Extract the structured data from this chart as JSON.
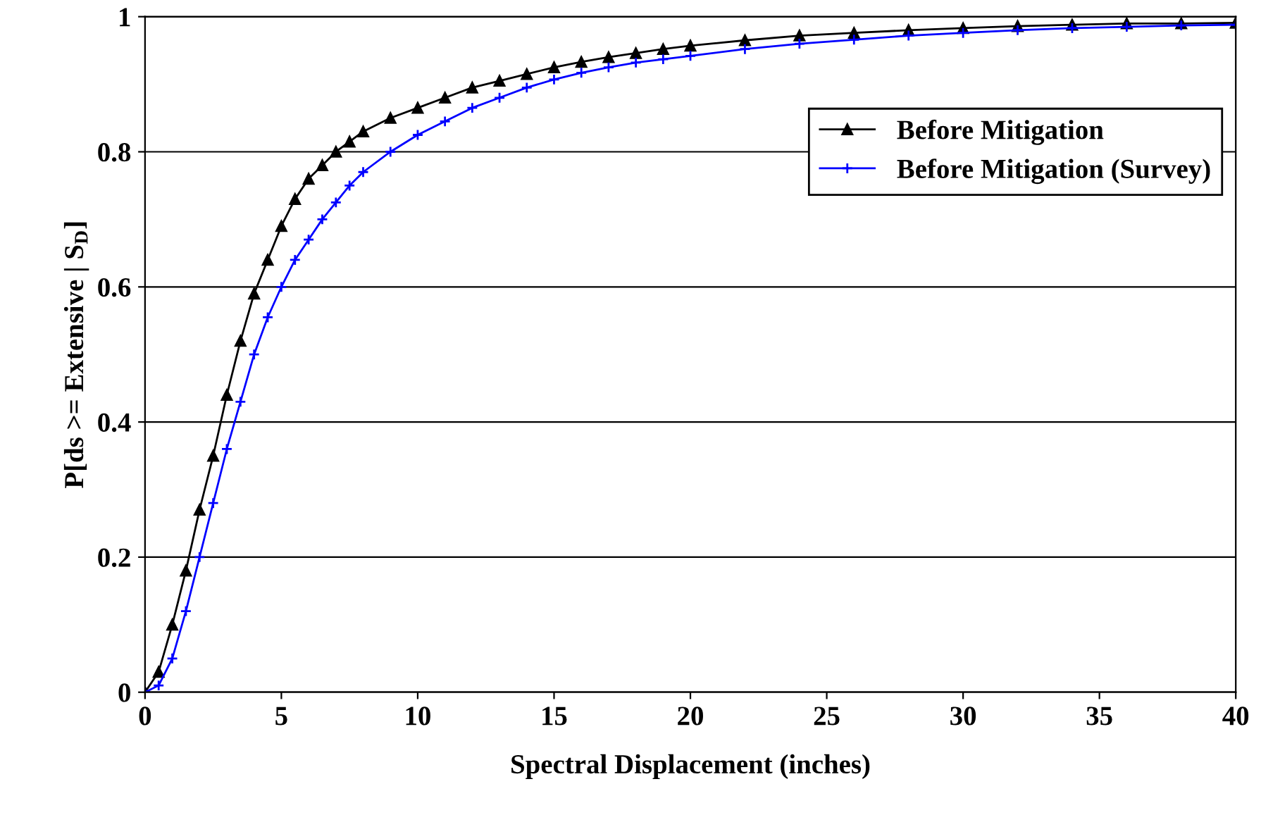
{
  "chart_data": {
    "type": "line",
    "xlabel": "Spectral Displacement (inches)",
    "ylabel": "P[ds >= Extensive | S$_{D}$]",
    "xlim": [
      0,
      40
    ],
    "ylim": [
      0,
      1
    ],
    "xticks": [
      0,
      5,
      10,
      15,
      20,
      25,
      30,
      35,
      40
    ],
    "yticks": [
      0,
      0.2,
      0.4,
      0.6,
      0.8,
      1
    ],
    "grid": "y",
    "legend": "right",
    "series": [
      {
        "name": "Before Mitigation",
        "color": "#000000",
        "marker": "triangle",
        "x": [
          0,
          0.5,
          1,
          1.5,
          2,
          2.5,
          3,
          3.5,
          4,
          4.5,
          5,
          5.5,
          6,
          6.5,
          7,
          7.5,
          8,
          9,
          10,
          11,
          12,
          13,
          14,
          15,
          16,
          17,
          18,
          19,
          20,
          22,
          24,
          26,
          28,
          30,
          32,
          34,
          36,
          38,
          40
        ],
        "values": [
          0,
          0.03,
          0.1,
          0.18,
          0.27,
          0.35,
          0.44,
          0.52,
          0.59,
          0.64,
          0.69,
          0.73,
          0.76,
          0.78,
          0.8,
          0.815,
          0.83,
          0.85,
          0.865,
          0.88,
          0.895,
          0.905,
          0.915,
          0.925,
          0.933,
          0.94,
          0.946,
          0.952,
          0.957,
          0.965,
          0.972,
          0.976,
          0.98,
          0.983,
          0.986,
          0.988,
          0.99,
          0.99,
          0.991
        ]
      },
      {
        "name": "Before Mitigation (Survey)",
        "color": "#0000ff",
        "marker": "cross",
        "x": [
          0,
          0.5,
          1,
          1.5,
          2,
          2.5,
          3,
          3.5,
          4,
          4.5,
          5,
          5.5,
          6,
          6.5,
          7,
          7.5,
          8,
          9,
          10,
          11,
          12,
          13,
          14,
          15,
          16,
          17,
          18,
          19,
          20,
          22,
          24,
          26,
          28,
          30,
          32,
          34,
          36,
          38,
          40
        ],
        "values": [
          0,
          0.01,
          0.05,
          0.12,
          0.2,
          0.28,
          0.36,
          0.43,
          0.5,
          0.555,
          0.6,
          0.64,
          0.67,
          0.7,
          0.725,
          0.75,
          0.77,
          0.8,
          0.825,
          0.845,
          0.865,
          0.88,
          0.895,
          0.907,
          0.917,
          0.925,
          0.932,
          0.937,
          0.942,
          0.952,
          0.96,
          0.966,
          0.972,
          0.976,
          0.98,
          0.983,
          0.985,
          0.987,
          0.988
        ]
      }
    ]
  }
}
